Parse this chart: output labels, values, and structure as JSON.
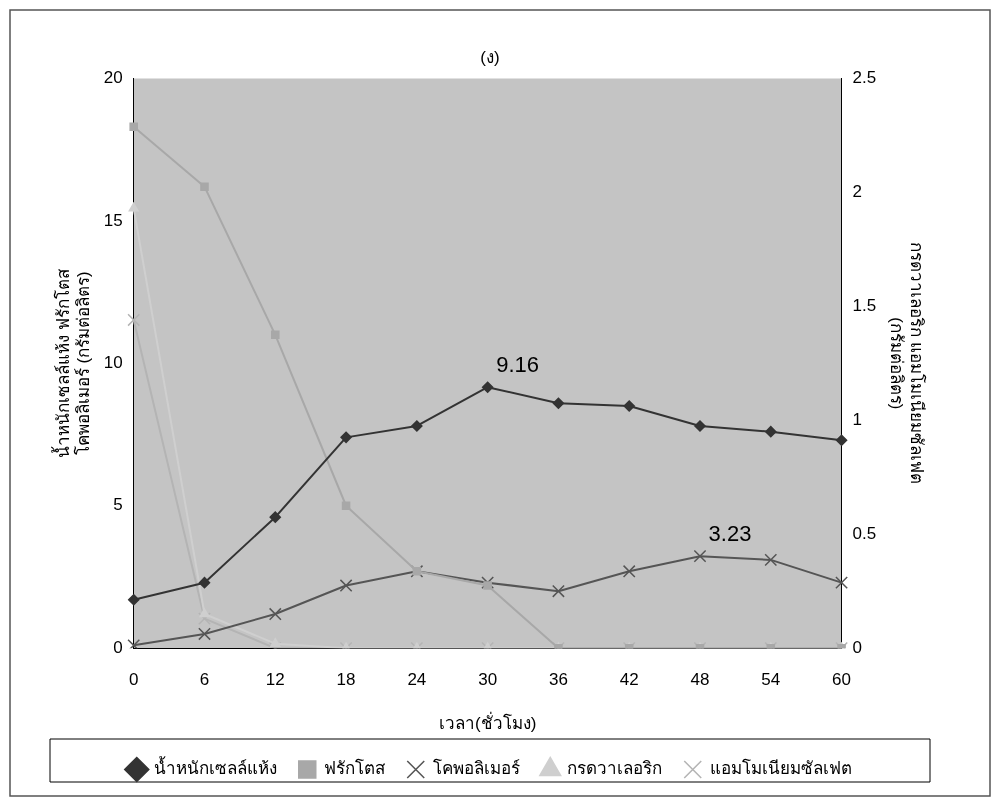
{
  "chart_data": {
    "type": "line",
    "title": "(ง)",
    "xlabel": "เวลา(ชั่วโมง)",
    "ylabel": "น้ำหนักเซลล์แห้ง ฟรักโตส\nโคพอลิเมอร์ (กรัมต่อลิตร)",
    "y2label": "กรดวาเลอริก แอมโมเนียมซัลเฟต\n(กรัมต่อลิตร)",
    "categories": [
      "0",
      "6",
      "12",
      "18",
      "24",
      "30",
      "36",
      "42",
      "48",
      "54",
      "60"
    ],
    "series": [
      {
        "name": "น้ำหนักเซลล์แห้ง",
        "color": "#333333",
        "marker": "diamond",
        "values": [
          1.7,
          2.3,
          4.6,
          7.4,
          7.8,
          9.16,
          8.6,
          8.5,
          7.8,
          7.6,
          7.3
        ]
      },
      {
        "name": "ฟรักโตส",
        "color": "#a8a8a8",
        "marker": "square",
        "values": [
          18.3,
          16.2,
          11.0,
          5.0,
          2.7,
          2.2,
          0,
          0,
          0,
          0,
          0
        ]
      },
      {
        "name": "โคพอลิเมอร์",
        "color": "#555555",
        "marker": "cross",
        "values": [
          0.1,
          0.5,
          1.2,
          2.2,
          2.7,
          2.3,
          2.0,
          2.7,
          3.23,
          3.1,
          2.3
        ]
      },
      {
        "name": "กรดวาเลอริก",
        "color": "#cfcfcf",
        "marker": "triangle",
        "axis": "y2",
        "values": [
          1.93,
          0.15,
          0.02,
          0,
          0,
          0,
          0,
          0,
          0,
          0,
          0
        ]
      },
      {
        "name": "แอมโมเนียมซัลเฟต",
        "color": "#b4b4b4",
        "marker": "cross",
        "axis": "y2",
        "values": [
          1.44,
          0.13,
          0,
          0,
          0,
          0,
          0,
          0,
          0,
          0,
          0
        ]
      }
    ],
    "ylim": [
      0,
      20
    ],
    "yticks": [
      0,
      5,
      10,
      15,
      20
    ],
    "y2lim": [
      0,
      2.5
    ],
    "y2ticks": [
      0,
      0.5,
      1,
      1.5,
      2,
      2.5
    ],
    "annotations": [
      {
        "text": "9.16",
        "x": "30",
        "y": 9.16
      },
      {
        "text": "3.23",
        "x": "48",
        "y": 3.23
      }
    ],
    "grid": false,
    "legend": "bottom"
  }
}
